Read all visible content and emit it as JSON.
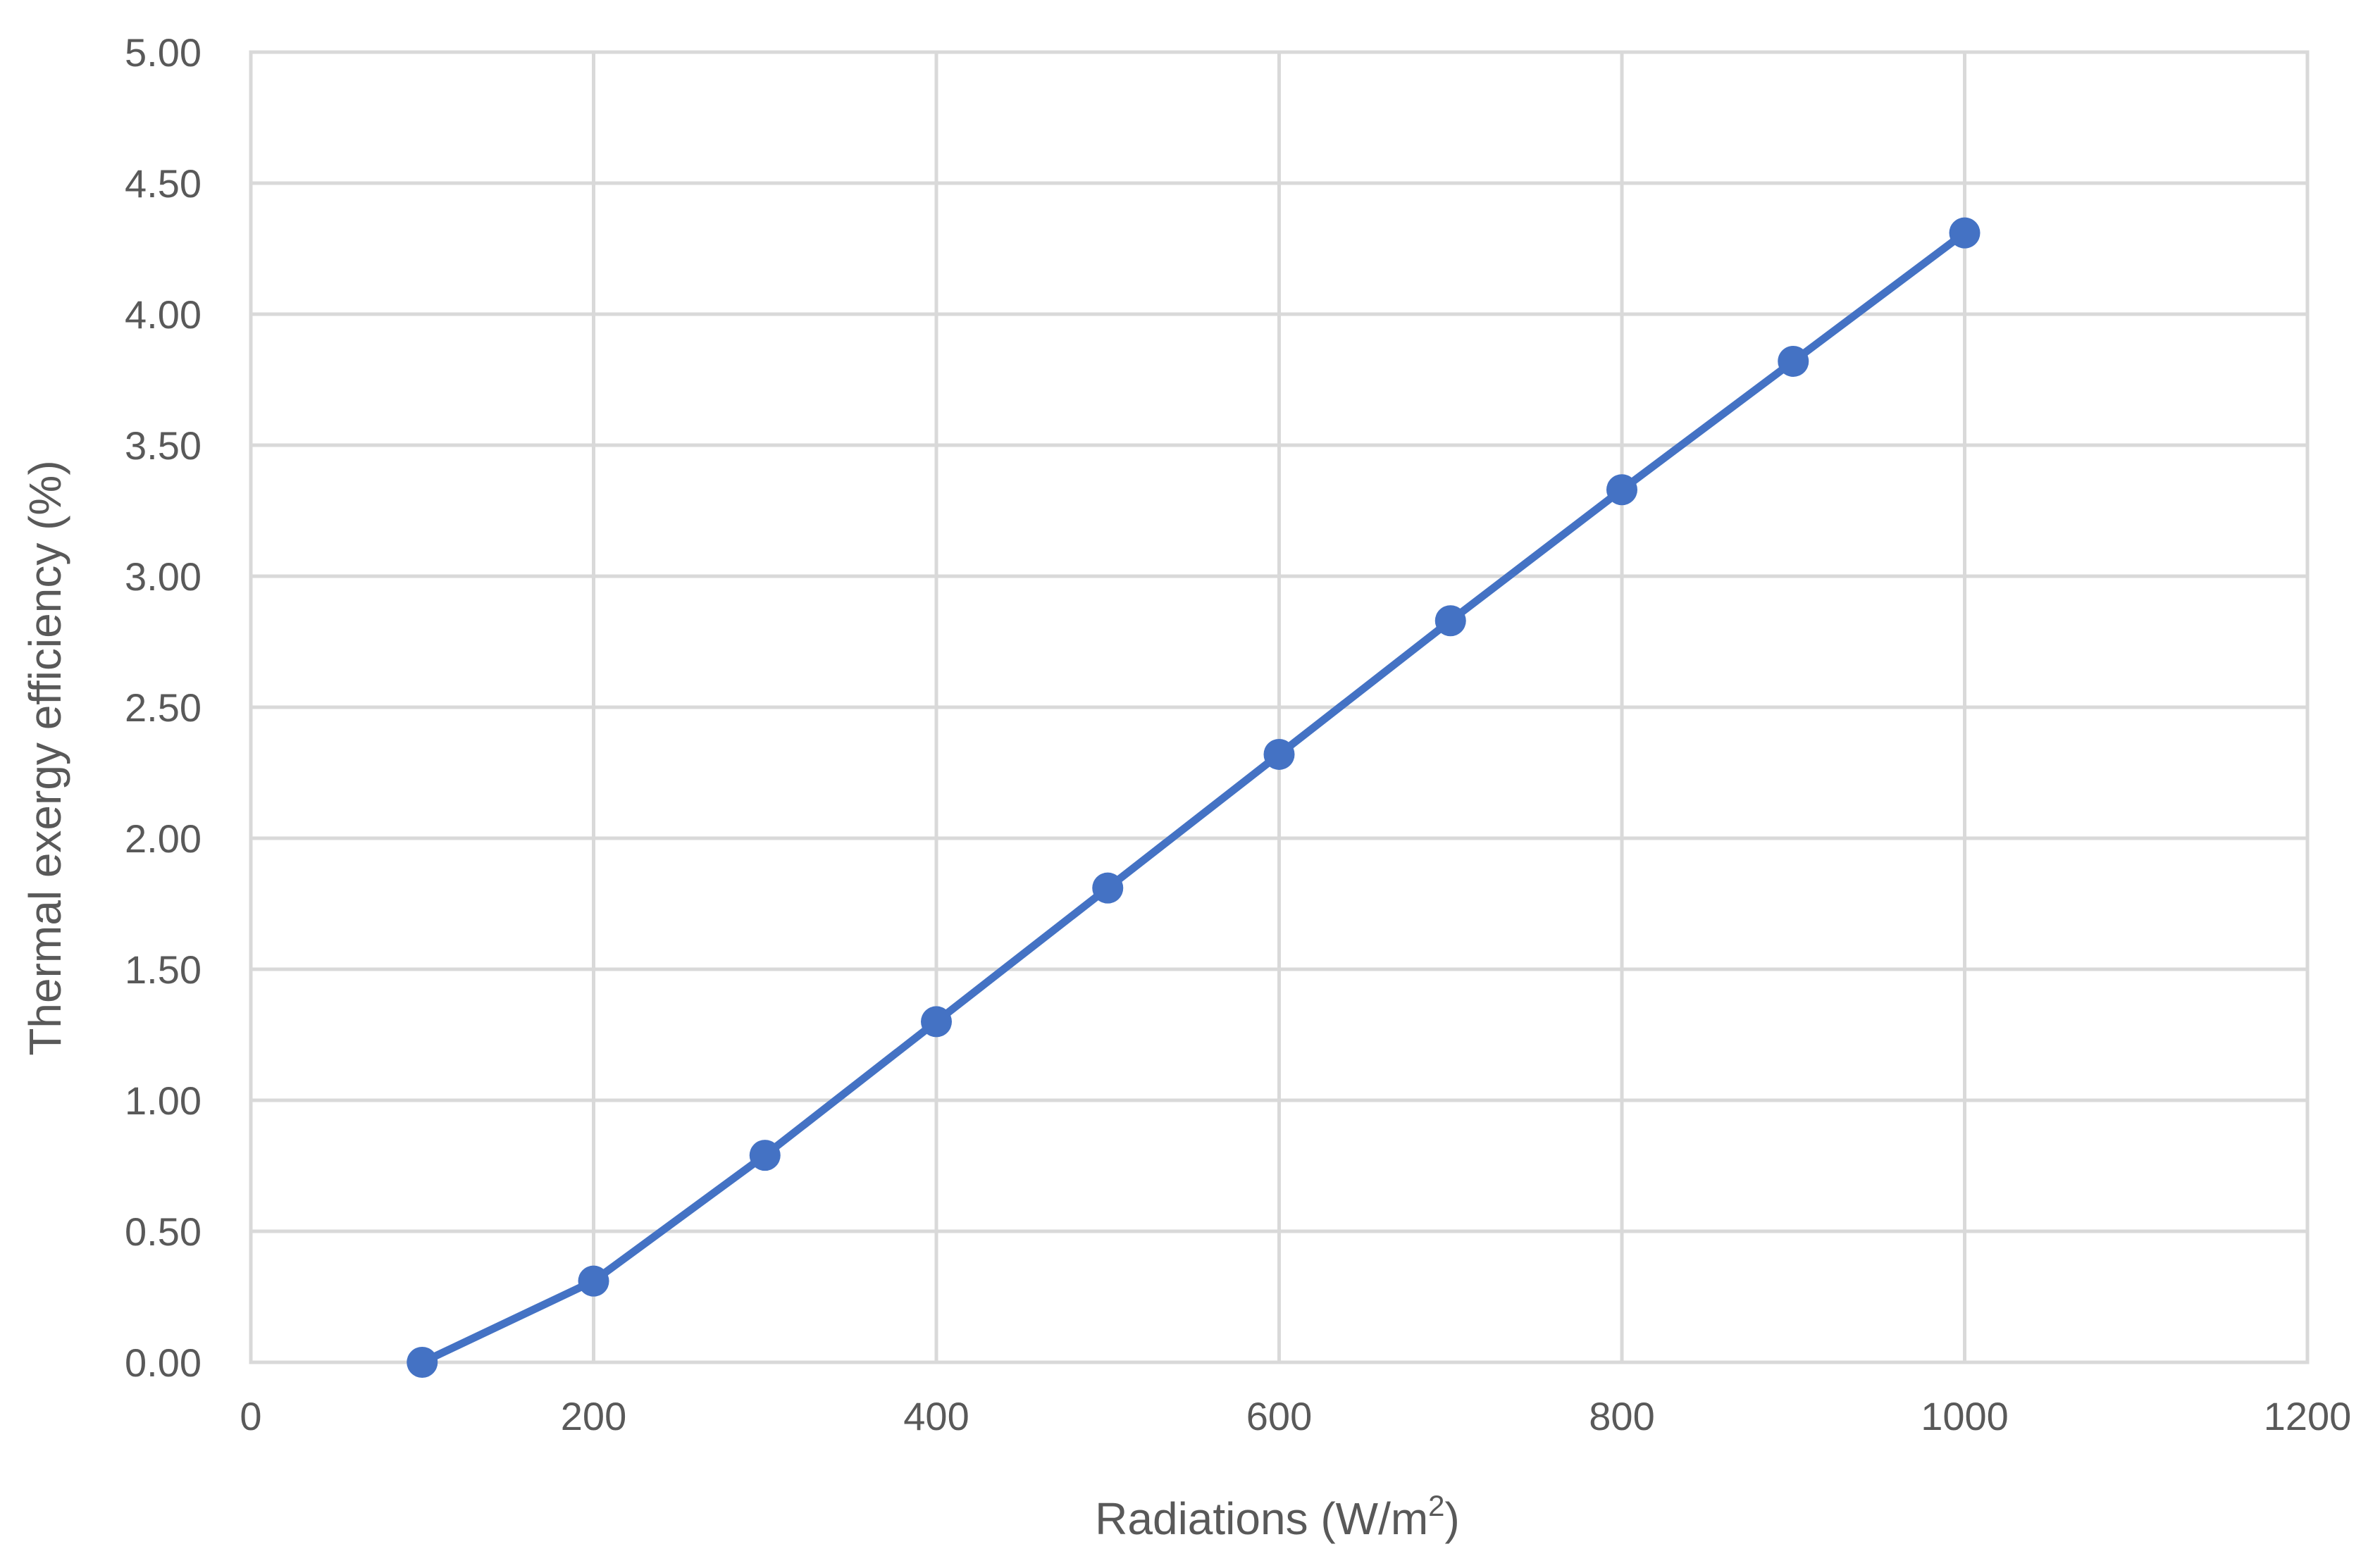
{
  "chart_data": {
    "type": "line",
    "title": "",
    "xlabel": "Radiations (W/m",
    "xlabel_sup": "2",
    "xlabel_suffix": ")",
    "ylabel": "Thermal exergy efficiency (%)",
    "xlim": [
      0,
      1200
    ],
    "ylim": [
      0,
      5
    ],
    "x_ticks": [
      "0",
      "200",
      "400",
      "600",
      "800",
      "1000",
      "1200"
    ],
    "y_ticks": [
      "0.00",
      "0.50",
      "1.00",
      "1.50",
      "2.00",
      "2.50",
      "3.00",
      "3.50",
      "4.00",
      "4.50",
      "5.00"
    ],
    "grid": true,
    "legend": "none",
    "series": [
      {
        "color": "#4472c4",
        "marker": "circle",
        "x": [
          100,
          200,
          300,
          400,
          500,
          600,
          700,
          800,
          900,
          1000
        ],
        "y": [
          0.0,
          0.31,
          0.79,
          1.3,
          1.81,
          2.32,
          2.83,
          3.33,
          3.82,
          4.31
        ]
      }
    ]
  }
}
